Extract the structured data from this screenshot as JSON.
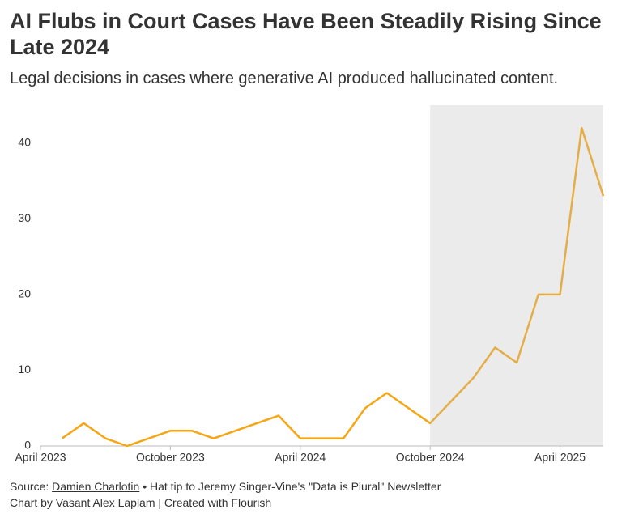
{
  "chart_data": {
    "type": "line",
    "title": "AI Flubs in Court Cases Have Been Steadily Rising Since Late 2024",
    "subtitle": "Legal decisions in cases where generative AI produced hallucinated content.",
    "x": [
      "2023-05",
      "2023-06",
      "2023-07",
      "2023-08",
      "2023-09",
      "2023-10",
      "2023-11",
      "2023-12",
      "2024-01",
      "2024-02",
      "2024-03",
      "2024-04",
      "2024-05",
      "2024-06",
      "2024-07",
      "2024-08",
      "2024-09",
      "2024-10",
      "2024-11",
      "2024-12",
      "2025-01",
      "2025-02",
      "2025-03",
      "2025-04",
      "2025-05",
      "2025-06"
    ],
    "series": [
      {
        "name": "Legal decisions",
        "color": "#f5a612",
        "values": [
          1,
          3,
          1,
          0,
          1,
          2,
          2,
          1,
          2,
          3,
          4,
          1,
          1,
          1,
          5,
          7,
          5,
          3,
          6,
          9,
          13,
          11,
          20,
          20,
          42,
          33
        ]
      }
    ],
    "xlim": [
      "2023-04",
      "2025-06"
    ],
    "xticks": [
      {
        "value": "2023-04",
        "label": "April 2023"
      },
      {
        "value": "2023-10",
        "label": "October 2023"
      },
      {
        "value": "2024-04",
        "label": "April 2024"
      },
      {
        "value": "2024-10",
        "label": "October 2024"
      },
      {
        "value": "2025-04",
        "label": "April 2025"
      }
    ],
    "ylim": [
      0,
      45
    ],
    "yticks": [
      0,
      10,
      20,
      30,
      40
    ],
    "shaded_from": "2024-10",
    "source_prefix": "Source:",
    "source_name": "Damien Charlotin",
    "source_rest": "• Hat tip to Jeremy Singer-Vine's \"Data is Plural\" Newsletter",
    "credit": "Chart by Vasant Alex Laplam | Created with Flourish"
  }
}
